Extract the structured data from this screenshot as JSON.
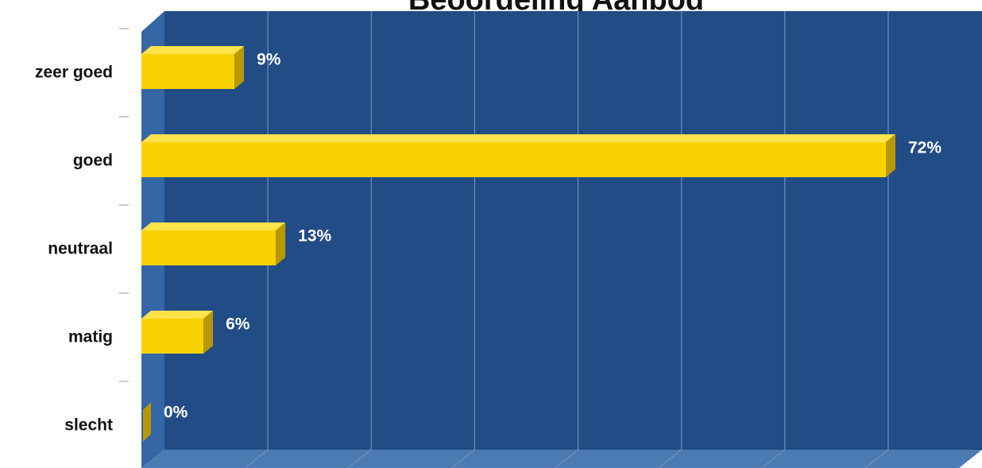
{
  "chart_data": {
    "type": "bar",
    "orientation": "horizontal",
    "title": "Beoordeling Aanbod",
    "categories": [
      "zeer goed",
      "goed",
      "neutraal",
      "matig",
      "slecht"
    ],
    "values": [
      9,
      72,
      13,
      6,
      0
    ],
    "value_labels": [
      "9%",
      "72%",
      "13%",
      "6%",
      "0%"
    ],
    "xlim": [
      0,
      80
    ],
    "grid": true,
    "legend": "none",
    "colors": {
      "plot_background": "#214c86",
      "floor": "#4c7ab2",
      "wall_side": "#3566a6",
      "bar_front": "#f7d200",
      "bar_top": "#ffe34a",
      "bar_side": "#b89a00",
      "gridline": "#6e8fbd"
    }
  }
}
